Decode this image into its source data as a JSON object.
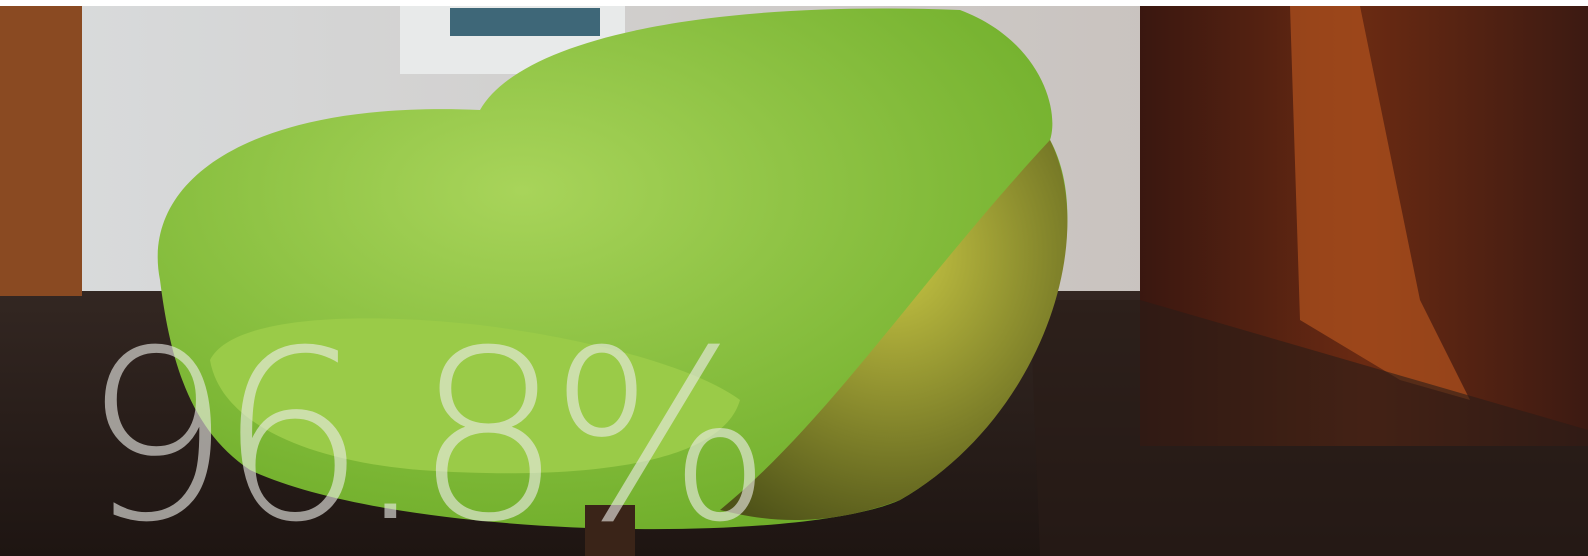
{
  "hero": {
    "stat": "96.8%"
  }
}
